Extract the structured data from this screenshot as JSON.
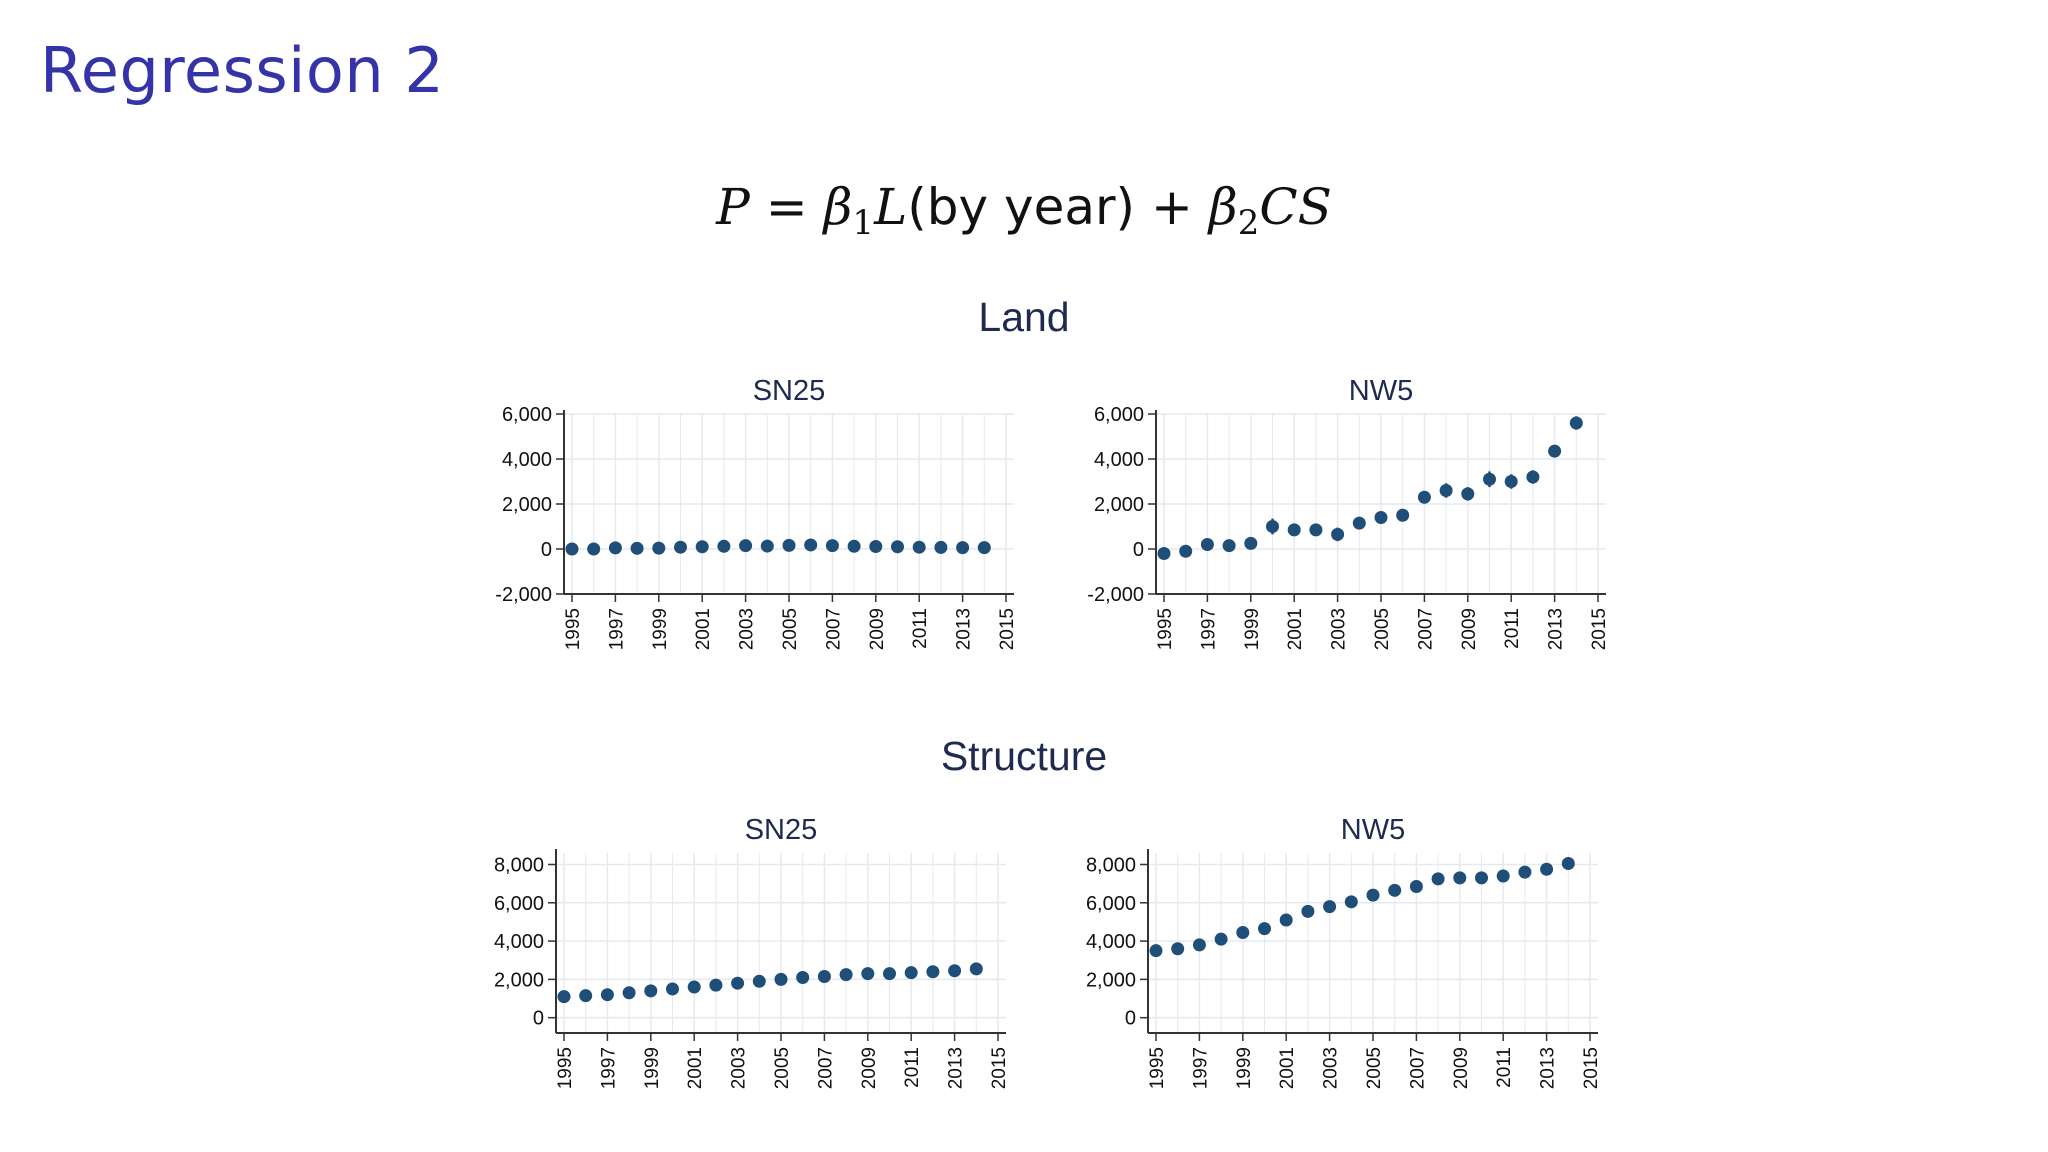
{
  "slide": {
    "title": "Regression 2",
    "formula": {
      "lhs": "P",
      "eq": "=",
      "beta": "β",
      "sub1": "1",
      "term1": "L",
      "term1_arg": "(by year)",
      "plus": "+",
      "sub2": "2",
      "term2": "CS"
    }
  },
  "sections": [
    {
      "title": "Land"
    },
    {
      "title": "Structure"
    }
  ],
  "colors": {
    "marker": "#1f4e79",
    "grid": "#e6e9ef",
    "axis": "#333333",
    "title": "#1e2a4f"
  },
  "chart_data": [
    {
      "type": "scatter",
      "title": "SN25",
      "section": "Land",
      "x": [
        1995,
        1996,
        1997,
        1998,
        1999,
        2000,
        2001,
        2002,
        2003,
        2004,
        2005,
        2006,
        2007,
        2008,
        2009,
        2010,
        2011,
        2012,
        2013,
        2014
      ],
      "y": [
        0,
        0,
        50,
        30,
        40,
        80,
        100,
        120,
        150,
        130,
        160,
        180,
        150,
        120,
        110,
        100,
        80,
        70,
        60,
        60
      ],
      "err": [
        0,
        0,
        0,
        0,
        0,
        0,
        0,
        0,
        0,
        0,
        0,
        0,
        0,
        0,
        0,
        0,
        0,
        0,
        0,
        0
      ],
      "xlim": [
        1995,
        2015
      ],
      "ylim": [
        -2000,
        6000
      ],
      "xticks": [
        "1995",
        "1997",
        "1999",
        "2001",
        "2003",
        "2005",
        "2007",
        "2009",
        "2011",
        "2013",
        "2015"
      ],
      "yticks": [
        "-2,000",
        "0",
        "2,000",
        "4,000",
        "6,000"
      ],
      "ytick_values": [
        -2000,
        0,
        2000,
        4000,
        6000
      ]
    },
    {
      "type": "scatter",
      "title": "NW5",
      "section": "Land",
      "x": [
        1995,
        1996,
        1997,
        1998,
        1999,
        2000,
        2001,
        2002,
        2003,
        2004,
        2005,
        2006,
        2007,
        2008,
        2009,
        2010,
        2011,
        2012,
        2013,
        2014
      ],
      "y": [
        -200,
        -100,
        200,
        150,
        250,
        1000,
        850,
        850,
        650,
        1150,
        1400,
        1500,
        2300,
        2600,
        2450,
        3100,
        3000,
        3200,
        4350,
        5600
      ],
      "err": [
        150,
        150,
        150,
        150,
        150,
        350,
        250,
        200,
        300,
        200,
        200,
        220,
        280,
        320,
        300,
        350,
        320,
        300,
        250,
        300
      ],
      "xlim": [
        1995,
        2015
      ],
      "ylim": [
        -2000,
        6000
      ],
      "xticks": [
        "1995",
        "1997",
        "1999",
        "2001",
        "2003",
        "2005",
        "2007",
        "2009",
        "2011",
        "2013",
        "2015"
      ],
      "yticks": [
        "-2,000",
        "0",
        "2,000",
        "4,000",
        "6,000"
      ],
      "ytick_values": [
        -2000,
        0,
        2000,
        4000,
        6000
      ]
    },
    {
      "type": "scatter",
      "title": "SN25",
      "section": "Structure",
      "x": [
        1995,
        1996,
        1997,
        1998,
        1999,
        2000,
        2001,
        2002,
        2003,
        2004,
        2005,
        2006,
        2007,
        2008,
        2009,
        2010,
        2011,
        2012,
        2013,
        2014
      ],
      "y": [
        1100,
        1150,
        1200,
        1300,
        1400,
        1500,
        1600,
        1700,
        1800,
        1900,
        2000,
        2100,
        2150,
        2250,
        2300,
        2300,
        2350,
        2400,
        2450,
        2550
      ],
      "err": [
        0,
        0,
        0,
        0,
        0,
        0,
        0,
        0,
        0,
        0,
        0,
        0,
        0,
        0,
        0,
        0,
        0,
        0,
        0,
        0
      ],
      "xlim": [
        1995,
        2015
      ],
      "ylim": [
        -800,
        8600
      ],
      "xticks": [
        "1995",
        "1997",
        "1999",
        "2001",
        "2003",
        "2005",
        "2007",
        "2009",
        "2011",
        "2013",
        "2015"
      ],
      "yticks": [
        "0",
        "2,000",
        "4,000",
        "6,000",
        "8,000"
      ],
      "ytick_values": [
        0,
        2000,
        4000,
        6000,
        8000
      ]
    },
    {
      "type": "scatter",
      "title": "NW5",
      "section": "Structure",
      "x": [
        1995,
        1996,
        1997,
        1998,
        1999,
        2000,
        2001,
        2002,
        2003,
        2004,
        2005,
        2006,
        2007,
        2008,
        2009,
        2010,
        2011,
        2012,
        2013,
        2014
      ],
      "y": [
        3500,
        3600,
        3800,
        4100,
        4450,
        4650,
        5100,
        5550,
        5800,
        6050,
        6400,
        6650,
        6850,
        7250,
        7300,
        7300,
        7400,
        7600,
        7750,
        8050
      ],
      "err": [
        0,
        0,
        0,
        0,
        0,
        0,
        0,
        0,
        0,
        0,
        0,
        0,
        0,
        0,
        0,
        0,
        0,
        0,
        0,
        0
      ],
      "xlim": [
        1995,
        2015
      ],
      "ylim": [
        -800,
        8600
      ],
      "xticks": [
        "1995",
        "1997",
        "1999",
        "2001",
        "2003",
        "2005",
        "2007",
        "2009",
        "2011",
        "2013",
        "2015"
      ],
      "yticks": [
        "0",
        "2,000",
        "4,000",
        "6,000",
        "8,000"
      ],
      "ytick_values": [
        0,
        2000,
        4000,
        6000,
        8000
      ]
    }
  ]
}
